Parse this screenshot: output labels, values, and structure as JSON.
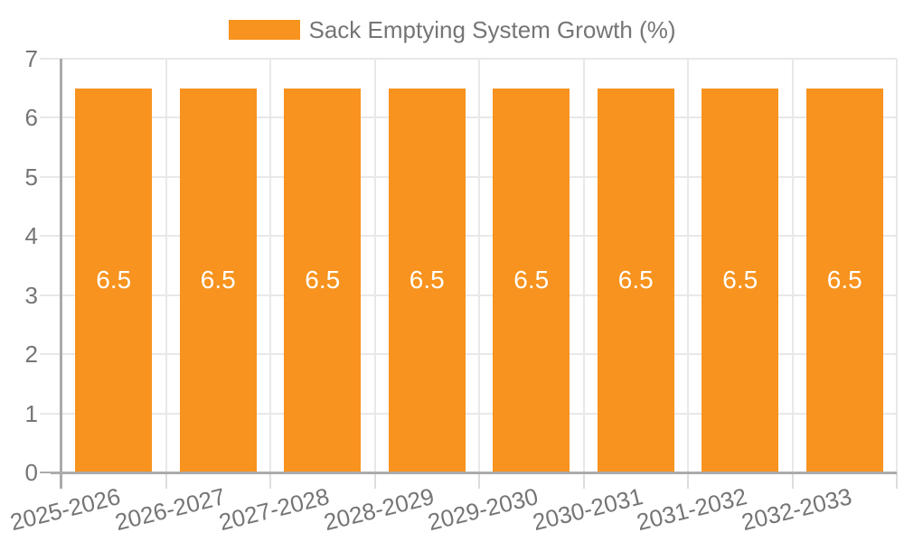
{
  "chart_data": {
    "type": "bar",
    "title": "",
    "legend": {
      "label": "Sack Emptying System Growth (%)",
      "position": "top"
    },
    "categories": [
      "2025-2026",
      "2026-2027",
      "2027-2028",
      "2028-2029",
      "2029-2030",
      "2030-2031",
      "2031-2032",
      "2032-2033"
    ],
    "series": [
      {
        "name": "Sack Emptying System Growth (%)",
        "values": [
          6.5,
          6.5,
          6.5,
          6.5,
          6.5,
          6.5,
          6.5,
          6.5
        ],
        "data_labels": [
          "6.5",
          "6.5",
          "6.5",
          "6.5",
          "6.5",
          "6.5",
          "6.5",
          "6.5"
        ]
      }
    ],
    "xlabel": "",
    "ylabel": "",
    "ylim": [
      0,
      7
    ],
    "yticks": [
      0,
      1,
      2,
      3,
      4,
      5,
      6,
      7
    ],
    "grid": true,
    "colors": {
      "bar": "#F7931E",
      "label_text": "#757575",
      "bar_label": "#FFFFFF",
      "axis_line": "#ABABAB",
      "grid_line": "#E8E8E8",
      "tick_line": "#DDDDDD",
      "background": "#FFFFFF"
    }
  }
}
